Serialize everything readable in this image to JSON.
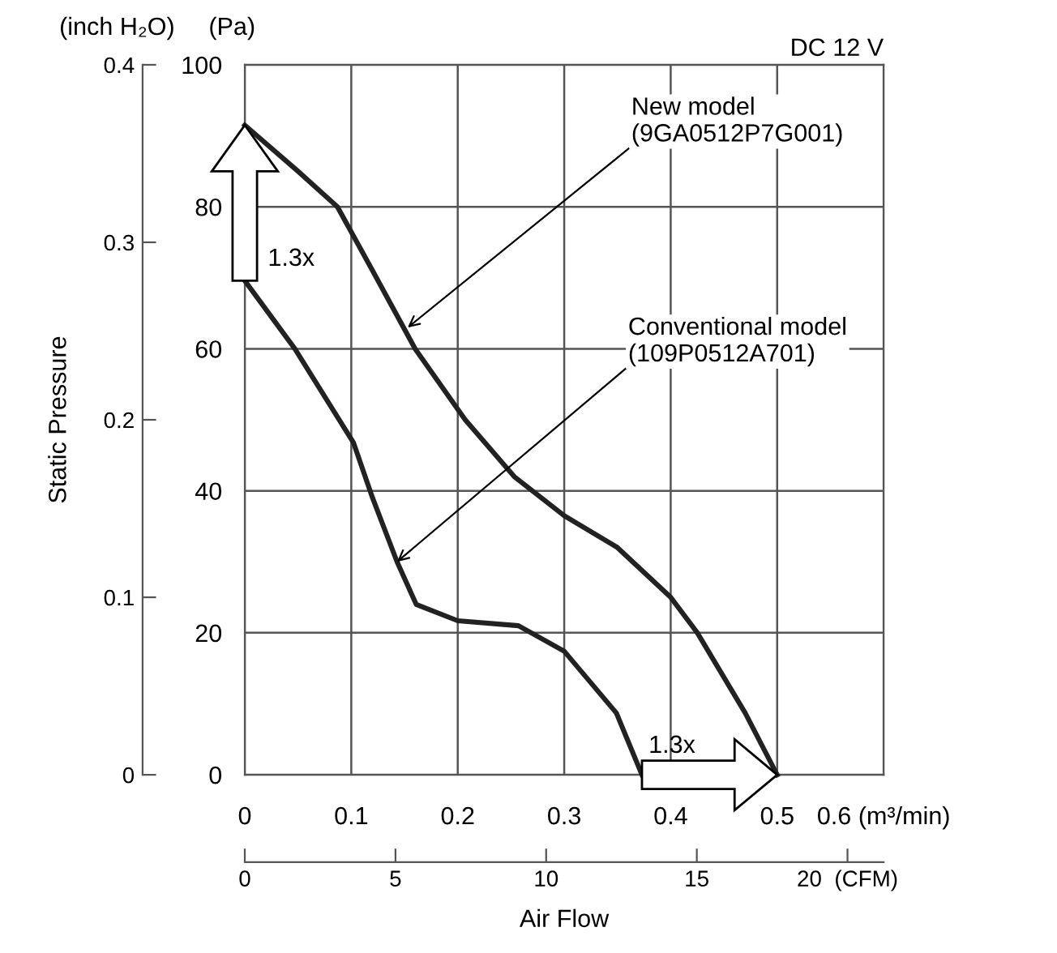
{
  "chart_data": {
    "type": "line",
    "title": "DC 12 V",
    "xlabel": "Air Flow",
    "ylabel": "(Pa)",
    "y2label": "(inch H₂O)",
    "xlim": [
      0,
      0.6
    ],
    "xticks": [
      0,
      0.1,
      0.2,
      0.3,
      0.4,
      0.5,
      {
        "value": 0.6,
        "label": "0.6 (m³/min)"
      }
    ],
    "x2lim": [
      0,
      21.2
    ],
    "x2ticks": [
      0,
      5,
      10,
      15,
      {
        "value": 20,
        "label": "20  (CFM)"
      }
    ],
    "ylim": [
      0,
      100
    ],
    "yticks": [
      0,
      20,
      40,
      60,
      80,
      100
    ],
    "y2lim": [
      0,
      0.4
    ],
    "y2ticks": [
      0,
      0.1,
      0.2,
      0.3,
      0.4
    ],
    "grid": true,
    "marker": "none",
    "line_style": "solid",
    "series": [
      {
        "color": "#222222",
        "x": [
          0,
          0.05,
          0.087,
          0.12,
          0.16,
          0.207,
          0.253,
          0.3,
          0.35,
          0.4,
          0.425,
          0.47,
          0.5
        ],
        "values": [
          91.5,
          85,
          80,
          71,
          60,
          50,
          42,
          36.5,
          32,
          25,
          20,
          8.7,
          0
        ]
      },
      {
        "color": "#222222",
        "x": [
          0,
          0.047,
          0.102,
          0.12,
          0.143,
          0.161,
          0.2,
          0.257,
          0.3,
          0.349,
          0.373
        ],
        "values": [
          69.6,
          60,
          46.8,
          39,
          30,
          24,
          21.7,
          21,
          17.4,
          8.7,
          0
        ]
      }
    ],
    "annotations": [
      "Static Pressure",
      {
        "text": "New model\n(9GA0512P7G001)",
        "x": 0.153,
        "y": 63
      },
      {
        "text": "Conventional model\n(109P0512A701)",
        "x": 0.143,
        "y": 30
      },
      "1.3x",
      "1.3x"
    ]
  }
}
